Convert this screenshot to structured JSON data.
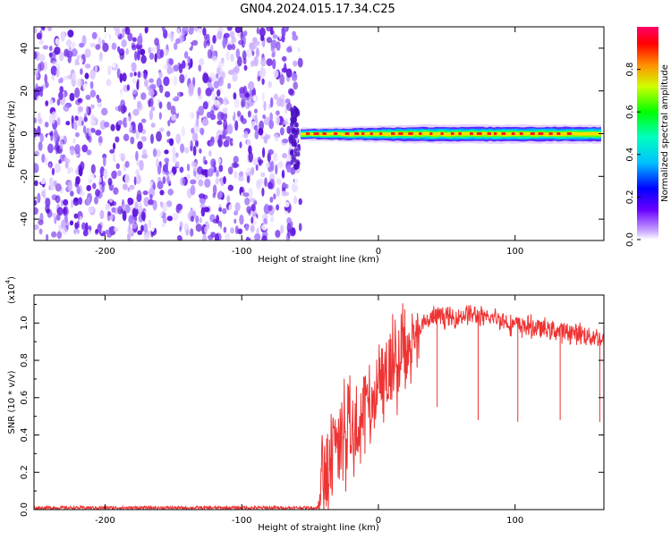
{
  "title": "GN04.2024.015.17.34.C25",
  "colors": {
    "snr_line": "#ee3333",
    "spectrogram_noise": "#6a1ee6",
    "axis": "#000000"
  },
  "colorbar": {
    "label": "Normalized spectral amplitude",
    "ticks": [
      "0.0",
      "0.2",
      "0.4",
      "0.6",
      "0.8"
    ],
    "range": [
      0,
      1
    ]
  },
  "chart_data": [
    {
      "type": "heatmap",
      "title": "GN04.2024.015.17.34.C25",
      "xlabel": "Height of straight line (km)",
      "ylabel": "Frequency (Hz)",
      "xlim": [
        -252,
        165
      ],
      "ylim": [
        -50,
        50
      ],
      "x_ticks": [
        -200,
        -100,
        0,
        100
      ],
      "y_ticks": [
        -40,
        -20,
        0,
        20,
        40
      ],
      "x_tick_labels": [
        "-200",
        "-100",
        "0",
        "100"
      ],
      "y_tick_labels": [
        "-40",
        "-20",
        "0",
        "20",
        "40"
      ],
      "noise_region_x": [
        -252,
        -57
      ],
      "signal_region_x": [
        -57,
        165
      ],
      "signal_center_hz": 0,
      "signal_halfwidth_hz": 4,
      "colorscale": "rainbow",
      "value_range": [
        0,
        1
      ]
    },
    {
      "type": "line",
      "xlabel": "Height of straight line (km)",
      "ylabel": "SNR (10 * v/v)",
      "y_scale_note": "(x10",
      "y_scale_exp": "4",
      "y_scale_close": ")",
      "xlim": [
        -252,
        165
      ],
      "ylim": [
        0,
        1.15
      ],
      "x_ticks": [
        -200,
        -100,
        0,
        100
      ],
      "y_ticks": [
        0.0,
        0.2,
        0.4,
        0.6,
        0.8,
        1.0
      ],
      "x_tick_labels": [
        "-200",
        "-100",
        "0",
        "100"
      ],
      "y_tick_labels": [
        "0.0",
        "0.2",
        "0.4",
        "0.6",
        "0.8",
        "1.0"
      ],
      "series": [
        {
          "x": [
            -252,
            -200,
            -150,
            -100,
            -60,
            -44,
            -40,
            -35,
            -30,
            -25,
            -20,
            -15,
            -10,
            -5,
            0,
            5,
            10,
            15,
            20,
            25,
            30,
            35,
            40,
            45,
            50,
            55,
            60,
            65,
            70,
            75,
            80,
            85,
            90,
            95,
            100,
            110,
            120,
            130,
            140,
            150,
            160,
            165
          ],
          "y": [
            0.01,
            0.01,
            0.01,
            0.01,
            0.01,
            0.01,
            0.15,
            0.28,
            0.38,
            0.42,
            0.48,
            0.52,
            0.55,
            0.6,
            0.66,
            0.73,
            0.78,
            0.84,
            0.88,
            0.93,
            0.97,
            1.0,
            1.03,
            1.04,
            1.03,
            1.02,
            1.04,
            1.05,
            1.04,
            1.03,
            1.02,
            1.03,
            1.02,
            1.0,
            0.99,
            0.98,
            0.97,
            0.96,
            0.95,
            0.94,
            0.92,
            0.91
          ]
        }
      ],
      "dropouts": [
        {
          "x": 43,
          "y": 0.55
        },
        {
          "x": 73,
          "y": 0.48
        },
        {
          "x": 102,
          "y": 0.47
        },
        {
          "x": 133,
          "y": 0.48
        },
        {
          "x": 162,
          "y": 0.47
        }
      ]
    }
  ]
}
